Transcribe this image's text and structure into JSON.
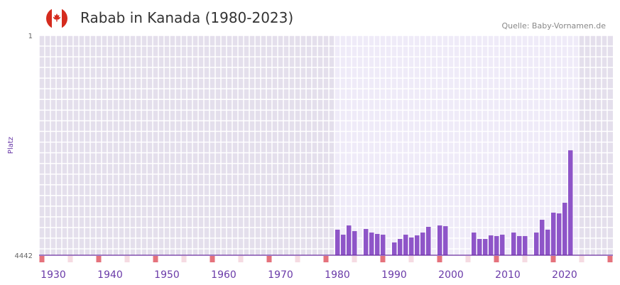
{
  "header": {
    "title": "Rabab in Kanada (1980-2023)",
    "source": "Quelle: Baby-Vornamen.de",
    "flag_icon": "canada-flag-icon"
  },
  "colors": {
    "bar": "#8e55c8",
    "axis": "#6a2fa0",
    "label": "#6a3aa8"
  },
  "chart_data": {
    "type": "bar",
    "title": "Rabab in Kanada (1980-2023)",
    "xlabel": "",
    "ylabel": "Platz",
    "ylim": [
      4442,
      1
    ],
    "xlim": [
      1927.5,
      2028.5
    ],
    "y_ticks": [
      "1",
      "4442"
    ],
    "x_ticks": [
      "1930",
      "1940",
      "1950",
      "1960",
      "1970",
      "1980",
      "1990",
      "2000",
      "2010",
      "2020"
    ],
    "x": [
      1980,
      1981,
      1982,
      1983,
      1985,
      1986,
      1987,
      1988,
      1990,
      1991,
      1992,
      1993,
      1994,
      1995,
      1996,
      1998,
      1999,
      2004,
      2005,
      2006,
      2007,
      2008,
      2009,
      2011,
      2012,
      2013,
      2015,
      2016,
      2017,
      2018,
      2019,
      2020,
      2021
    ],
    "values": [
      3926,
      4027,
      3840,
      3955,
      3912,
      3984,
      4012,
      4027,
      4184,
      4113,
      4027,
      4084,
      4041,
      3984,
      3869,
      3840,
      3855,
      3984,
      4113,
      4113,
      4041,
      4055,
      4027,
      3984,
      4055,
      4055,
      3984,
      3726,
      3926,
      3582,
      3597,
      3382,
      2322
    ],
    "grid": true
  }
}
